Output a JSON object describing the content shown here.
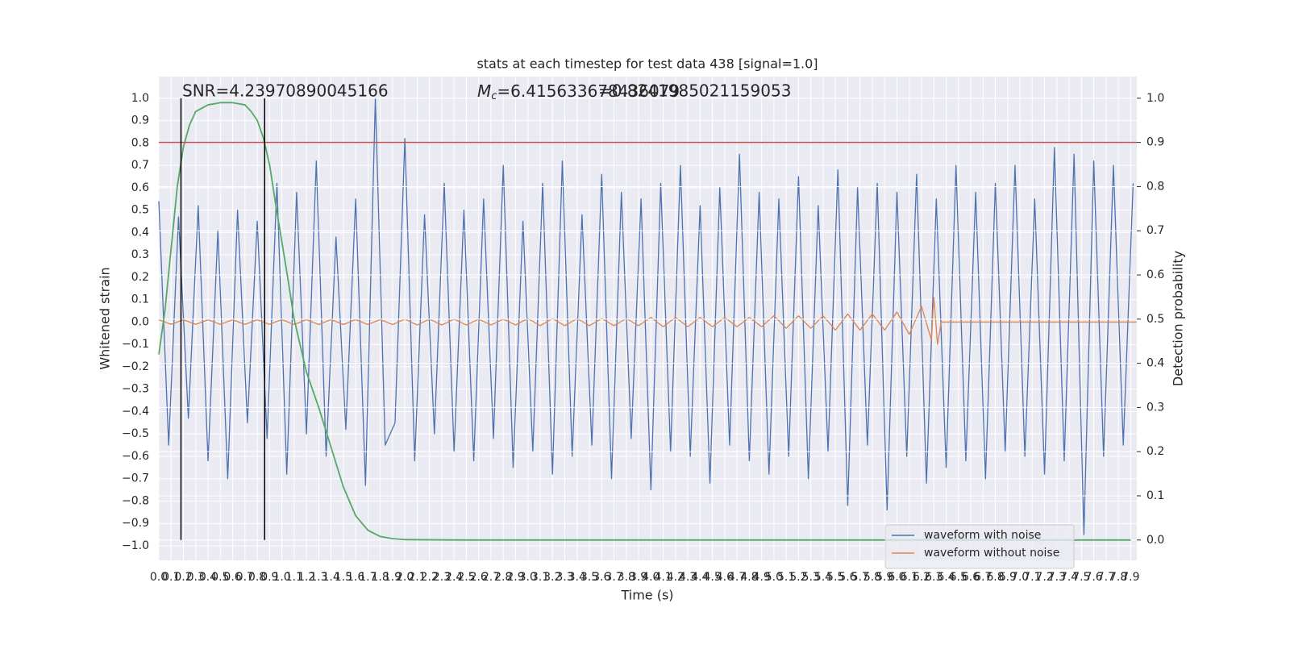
{
  "chart_data": {
    "type": "line",
    "title": "stats at each timestep for test data 438 [signal=1.0]",
    "xlabel": "Time (s)",
    "ylabel": "Whitened strain",
    "y2label": "Detection probability",
    "annotations": [
      {
        "text": "SNR=4.23970890045166"
      },
      {
        "parts": [
          "M",
          "c",
          "=6.415633678436079"
        ]
      },
      {
        "text": "=0.8241985021159053"
      }
    ],
    "xlim": [
      0,
      7.95
    ],
    "ylim": [
      -1.065,
      1.097
    ],
    "y2lim": [
      -0.046,
      1.049
    ],
    "xticks": [
      {
        "value": 0,
        "label": "0.0"
      },
      {
        "value": 0.1,
        "label": "0.1"
      },
      {
        "value": 0.2,
        "label": "0.2"
      },
      {
        "value": 0.3,
        "label": "0.3"
      },
      {
        "value": 0.4,
        "label": "0.4"
      },
      {
        "value": 0.5,
        "label": "0.5"
      },
      {
        "value": 0.6,
        "label": "0.6"
      },
      {
        "value": 0.7,
        "label": "0.7"
      },
      {
        "value": 0.8,
        "label": "0.8"
      },
      {
        "value": 0.9,
        "label": "0.9"
      },
      {
        "value": 1,
        "label": "1.0"
      },
      {
        "value": 1.1,
        "label": "1.1"
      },
      {
        "value": 1.2,
        "label": "1.2"
      },
      {
        "value": 1.3,
        "label": "1.3"
      },
      {
        "value": 1.4,
        "label": "1.4"
      },
      {
        "value": 1.5,
        "label": "1.5"
      },
      {
        "value": 1.6,
        "label": "1.6"
      },
      {
        "value": 1.7,
        "label": "1.7"
      },
      {
        "value": 1.8,
        "label": "1.8"
      },
      {
        "value": 1.9,
        "label": "1.9"
      },
      {
        "value": 2,
        "label": "2.0"
      },
      {
        "value": 2.1,
        "label": "2.1"
      },
      {
        "value": 2.2,
        "label": "2.2"
      },
      {
        "value": 2.3,
        "label": "2.3"
      },
      {
        "value": 2.4,
        "label": "2.4"
      },
      {
        "value": 2.5,
        "label": "2.5"
      },
      {
        "value": 2.6,
        "label": "2.6"
      },
      {
        "value": 2.7,
        "label": "2.7"
      },
      {
        "value": 2.8,
        "label": "2.8"
      },
      {
        "value": 2.9,
        "label": "2.9"
      },
      {
        "value": 3,
        "label": "3.0"
      },
      {
        "value": 3.1,
        "label": "3.1"
      },
      {
        "value": 3.2,
        "label": "3.2"
      },
      {
        "value": 3.3,
        "label": "3.3"
      },
      {
        "value": 3.4,
        "label": "3.4"
      },
      {
        "value": 3.5,
        "label": "3.5"
      },
      {
        "value": 3.6,
        "label": "3.6"
      },
      {
        "value": 3.7,
        "label": "3.7"
      },
      {
        "value": 3.8,
        "label": "3.8"
      },
      {
        "value": 3.9,
        "label": "3.9"
      },
      {
        "value": 4,
        "label": "4.0"
      },
      {
        "value": 4.1,
        "label": "4.1"
      },
      {
        "value": 4.2,
        "label": "4.2"
      },
      {
        "value": 4.3,
        "label": "4.3"
      },
      {
        "value": 4.4,
        "label": "4.4"
      },
      {
        "value": 4.5,
        "label": "4.5"
      },
      {
        "value": 4.6,
        "label": "4.6"
      },
      {
        "value": 4.7,
        "label": "4.7"
      },
      {
        "value": 4.8,
        "label": "4.8"
      },
      {
        "value": 4.9,
        "label": "4.9"
      },
      {
        "value": 5,
        "label": "5.0"
      },
      {
        "value": 5.1,
        "label": "5.1"
      },
      {
        "value": 5.2,
        "label": "5.2"
      },
      {
        "value": 5.3,
        "label": "5.3"
      },
      {
        "value": 5.4,
        "label": "5.4"
      },
      {
        "value": 5.5,
        "label": "5.5"
      },
      {
        "value": 5.6,
        "label": "5.6"
      },
      {
        "value": 5.7,
        "label": "5.7"
      },
      {
        "value": 5.8,
        "label": "5.8"
      },
      {
        "value": 5.9,
        "label": "5.9"
      },
      {
        "value": 6,
        "label": "6.0"
      },
      {
        "value": 6.1,
        "label": "6.1"
      },
      {
        "value": 6.2,
        "label": "6.2"
      },
      {
        "value": 6.3,
        "label": "6.3"
      },
      {
        "value": 6.4,
        "label": "6.4"
      },
      {
        "value": 6.5,
        "label": "6.5"
      },
      {
        "value": 6.6,
        "label": "6.6"
      },
      {
        "value": 6.7,
        "label": "6.7"
      },
      {
        "value": 6.8,
        "label": "6.8"
      },
      {
        "value": 6.9,
        "label": "6.9"
      },
      {
        "value": 7,
        "label": "7.0"
      },
      {
        "value": 7.1,
        "label": "7.1"
      },
      {
        "value": 7.2,
        "label": "7.2"
      },
      {
        "value": 7.3,
        "label": "7.3"
      },
      {
        "value": 7.4,
        "label": "7.4"
      },
      {
        "value": 7.5,
        "label": "7.5"
      },
      {
        "value": 7.6,
        "label": "7.6"
      },
      {
        "value": 7.7,
        "label": "7.7"
      },
      {
        "value": 7.8,
        "label": "7.8"
      },
      {
        "value": 7.9,
        "label": "7.9"
      }
    ],
    "yticks": [
      {
        "value": -1,
        "label": "−1.0"
      },
      {
        "value": -0.9,
        "label": "−0.9"
      },
      {
        "value": -0.8,
        "label": "−0.8"
      },
      {
        "value": -0.7,
        "label": "−0.7"
      },
      {
        "value": -0.6,
        "label": "−0.6"
      },
      {
        "value": -0.5,
        "label": "−0.5"
      },
      {
        "value": -0.4,
        "label": "−0.4"
      },
      {
        "value": -0.3,
        "label": "−0.3"
      },
      {
        "value": -0.2,
        "label": "−0.2"
      },
      {
        "value": -0.1,
        "label": "−0.1"
      },
      {
        "value": 0,
        "label": "0.0"
      },
      {
        "value": 0.1,
        "label": "0.1"
      },
      {
        "value": 0.2,
        "label": "0.2"
      },
      {
        "value": 0.3,
        "label": "0.3"
      },
      {
        "value": 0.4,
        "label": "0.4"
      },
      {
        "value": 0.5,
        "label": "0.5"
      },
      {
        "value": 0.6,
        "label": "0.6"
      },
      {
        "value": 0.7,
        "label": "0.7"
      },
      {
        "value": 0.8,
        "label": "0.8"
      },
      {
        "value": 0.9,
        "label": "0.9"
      },
      {
        "value": 1,
        "label": "1.0"
      }
    ],
    "y2ticks": [
      {
        "value": 0,
        "label": "0.0"
      },
      {
        "value": 0.1,
        "label": "0.1"
      },
      {
        "value": 0.2,
        "label": "0.2"
      },
      {
        "value": 0.3,
        "label": "0.3"
      },
      {
        "value": 0.4,
        "label": "0.4"
      },
      {
        "value": 0.5,
        "label": "0.5"
      },
      {
        "value": 0.6,
        "label": "0.6"
      },
      {
        "value": 0.7,
        "label": "0.7"
      },
      {
        "value": 0.8,
        "label": "0.8"
      },
      {
        "value": 0.9,
        "label": "0.9"
      },
      {
        "value": 1,
        "label": "1.0"
      }
    ],
    "grid": true,
    "legend": "lower right",
    "series": [
      {
        "name": "waveform with noise",
        "color": "#4c72b0",
        "x": [
          0,
          0.08,
          0.16,
          0.24,
          0.32,
          0.4,
          0.48,
          0.56,
          0.64,
          0.72,
          0.8,
          0.88,
          0.96,
          1.04,
          1.12,
          1.2,
          1.28,
          1.36,
          1.44,
          1.52,
          1.6,
          1.68,
          1.76,
          1.84,
          1.92,
          2.0,
          2.08,
          2.16,
          2.24,
          2.32,
          2.4,
          2.48,
          2.56,
          2.64,
          2.72,
          2.8,
          2.88,
          2.96,
          3.04,
          3.12,
          3.2,
          3.28,
          3.36,
          3.44,
          3.52,
          3.6,
          3.68,
          3.76,
          3.84,
          3.92,
          4.0,
          4.08,
          4.16,
          4.24,
          4.32,
          4.4,
          4.48,
          4.56,
          4.64,
          4.72,
          4.8,
          4.88,
          4.96,
          5.04,
          5.12,
          5.2,
          5.28,
          5.36,
          5.44,
          5.52,
          5.6,
          5.68,
          5.76,
          5.84,
          5.92,
          6.0,
          6.08,
          6.16,
          6.24,
          6.32,
          6.4,
          6.48,
          6.56,
          6.64,
          6.72,
          6.8,
          6.88,
          6.96,
          7.04,
          7.12,
          7.2,
          7.28,
          7.36,
          7.44,
          7.52,
          7.6,
          7.68,
          7.76,
          7.84,
          7.92
        ],
        "values": [
          0.54,
          -0.55,
          0.47,
          -0.43,
          0.52,
          -0.62,
          0.41,
          -0.7,
          0.5,
          -0.45,
          0.45,
          -0.52,
          0.62,
          -0.68,
          0.58,
          -0.5,
          0.72,
          -0.6,
          0.38,
          -0.48,
          0.55,
          -0.73,
          1.0,
          -0.55,
          -0.45,
          0.82,
          -0.62,
          0.48,
          -0.5,
          0.62,
          -0.58,
          0.5,
          -0.62,
          0.55,
          -0.52,
          0.7,
          -0.65,
          0.45,
          -0.58,
          0.62,
          -0.68,
          0.72,
          -0.6,
          0.48,
          -0.55,
          0.66,
          -0.7,
          0.58,
          -0.52,
          0.55,
          -0.75,
          0.62,
          -0.58,
          0.7,
          -0.6,
          0.52,
          -0.72,
          0.6,
          -0.55,
          0.75,
          -0.62,
          0.58,
          -0.68,
          0.55,
          -0.6,
          0.65,
          -0.7,
          0.52,
          -0.58,
          0.68,
          -0.82,
          0.6,
          -0.55,
          0.62,
          -0.84,
          0.58,
          -0.6,
          0.66,
          -0.72,
          0.55,
          -0.65,
          0.7,
          -0.62,
          0.58,
          -0.7,
          0.62,
          -0.58,
          0.7,
          -0.6,
          0.55,
          -0.68,
          0.78,
          -0.62,
          0.75,
          -0.95,
          0.72,
          -0.6,
          0.7,
          -0.55,
          0.62
        ]
      },
      {
        "name": "waveform without noise",
        "color": "#dd8452",
        "x": [
          0,
          0.1,
          0.2,
          0.3,
          0.4,
          0.5,
          0.6,
          0.7,
          0.8,
          0.9,
          1.0,
          1.1,
          1.2,
          1.3,
          1.4,
          1.5,
          1.6,
          1.7,
          1.8,
          1.9,
          2.0,
          2.1,
          2.2,
          2.3,
          2.4,
          2.5,
          2.6,
          2.7,
          2.8,
          2.9,
          3.0,
          3.1,
          3.2,
          3.3,
          3.4,
          3.5,
          3.6,
          3.7,
          3.8,
          3.9,
          4.0,
          4.1,
          4.2,
          4.3,
          4.4,
          4.5,
          4.6,
          4.7,
          4.8,
          4.9,
          5.0,
          5.1,
          5.2,
          5.3,
          5.4,
          5.5,
          5.6,
          5.7,
          5.8,
          5.9,
          6.0,
          6.1,
          6.2,
          6.28,
          6.3,
          6.33,
          6.36,
          7.95
        ],
        "values": [
          0.01,
          -0.01,
          0.01,
          -0.01,
          0.01,
          -0.01,
          0.01,
          -0.01,
          0.01,
          -0.01,
          0.011,
          -0.011,
          0.011,
          -0.011,
          0.011,
          -0.011,
          0.011,
          -0.011,
          0.011,
          -0.011,
          0.013,
          -0.013,
          0.013,
          -0.013,
          0.013,
          -0.013,
          0.013,
          -0.013,
          0.013,
          -0.013,
          0.016,
          -0.016,
          0.016,
          -0.016,
          0.016,
          -0.016,
          0.016,
          -0.016,
          0.016,
          -0.016,
          0.021,
          -0.021,
          0.021,
          -0.021,
          0.021,
          -0.021,
          0.021,
          -0.021,
          0.021,
          -0.021,
          0.028,
          -0.028,
          0.028,
          -0.028,
          0.028,
          -0.036,
          0.036,
          -0.036,
          0.036,
          -0.036,
          0.045,
          -0.055,
          0.07,
          -0.08,
          0.11,
          -0.1,
          0.0,
          0.0
        ]
      },
      {
        "color": "#55a868",
        "axis": "y2",
        "x": [
          0,
          0.05,
          0.1,
          0.15,
          0.2,
          0.25,
          0.3,
          0.4,
          0.5,
          0.6,
          0.7,
          0.75,
          0.8,
          0.85,
          0.9,
          0.95,
          1.0,
          1.05,
          1.1,
          1.15,
          1.2,
          1.3,
          1.4,
          1.5,
          1.6,
          1.7,
          1.8,
          1.9,
          2.0,
          2.5,
          7.9
        ],
        "values": [
          0.42,
          0.52,
          0.66,
          0.8,
          0.89,
          0.94,
          0.97,
          0.985,
          0.99,
          0.99,
          0.985,
          0.97,
          0.95,
          0.91,
          0.85,
          0.76,
          0.675,
          0.59,
          0.5,
          0.44,
          0.38,
          0.3,
          0.21,
          0.12,
          0.055,
          0.022,
          0.008,
          0.003,
          0.001,
          0.0,
          0.0
        ]
      }
    ],
    "hline": {
      "value": 0.9,
      "axis": "y2",
      "color": "#c44e52"
    },
    "vlines": {
      "values": [
        0.18,
        0.86
      ],
      "color": "#000000"
    }
  }
}
